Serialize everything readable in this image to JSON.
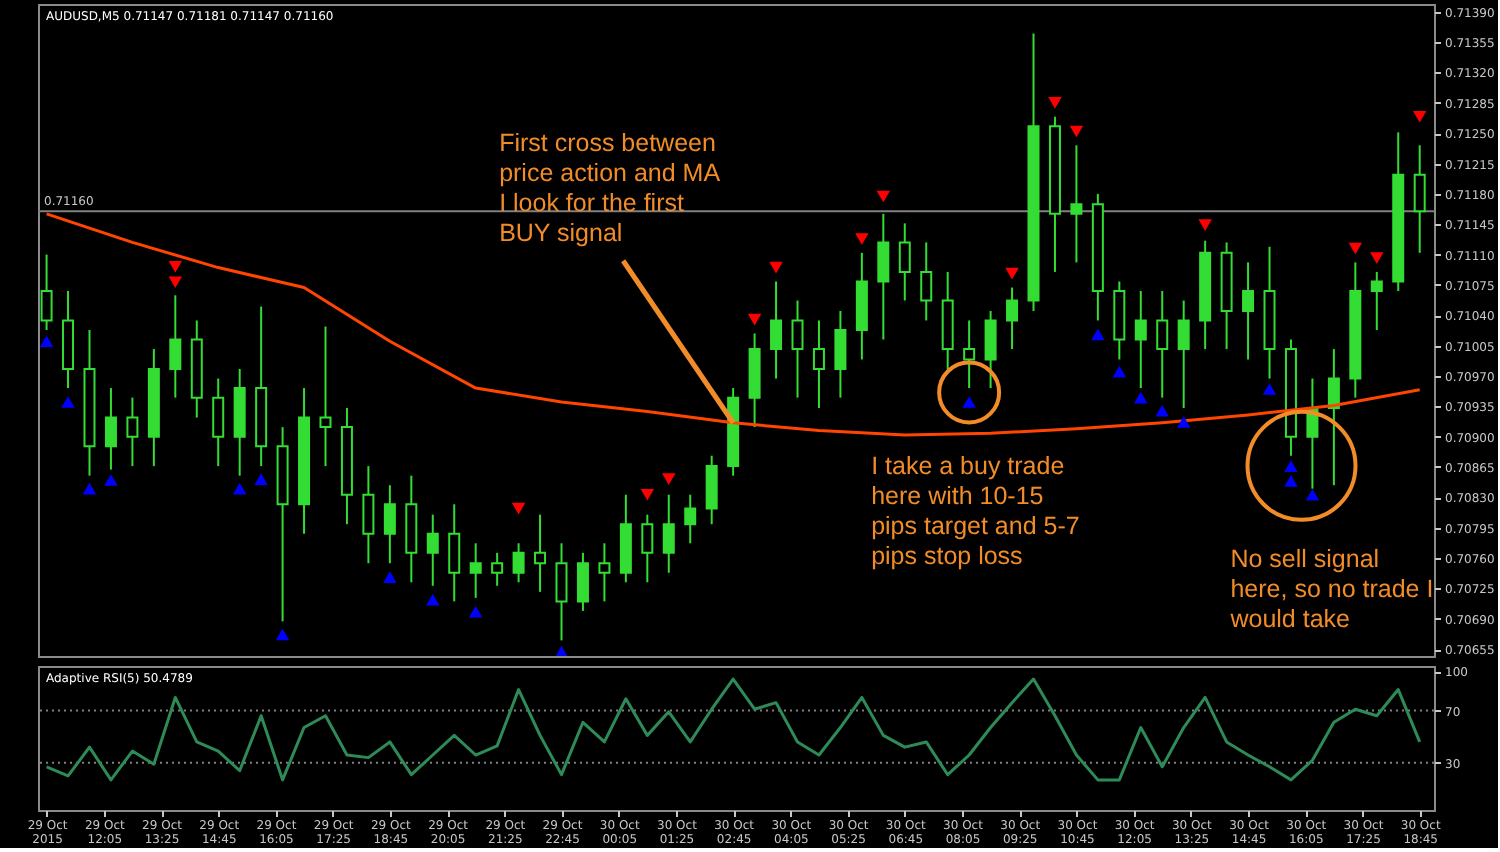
{
  "chart_data": [
    {
      "type": "candlestick",
      "title": "AUDUSD,M5 0.71147 0.71181 0.71147 0.71160",
      "tick_labels": "y",
      "x": [
        "2015-10-29T10:45",
        "2015-10-29T11:15",
        "2015-10-29T11:45",
        "2015-10-29T12:15",
        "2015-10-29T12:45",
        "2015-10-29T13:15",
        "2015-10-29T13:45",
        "2015-10-29T14:15",
        "2015-10-29T14:45",
        "2015-10-29T15:15",
        "2015-10-29T15:45",
        "2015-10-29T16:15",
        "2015-10-29T16:45",
        "2015-10-29T17:15",
        "2015-10-29T17:45",
        "2015-10-29T18:15",
        "2015-10-29T18:45",
        "2015-10-29T19:15",
        "2015-10-29T19:45",
        "2015-10-29T20:15",
        "2015-10-29T20:45",
        "2015-10-29T21:15",
        "2015-10-29T21:45",
        "2015-10-29T22:15",
        "2015-10-29T22:45",
        "2015-10-29T23:15",
        "2015-10-29T23:45",
        "2015-10-30T00:15",
        "2015-10-30T00:45",
        "2015-10-30T01:15",
        "2015-10-30T01:45",
        "2015-10-30T02:15",
        "2015-10-30T02:45",
        "2015-10-30T03:15",
        "2015-10-30T03:45",
        "2015-10-30T04:15",
        "2015-10-30T04:45",
        "2015-10-30T05:15",
        "2015-10-30T05:45",
        "2015-10-30T06:15",
        "2015-10-30T06:45",
        "2015-10-30T07:15",
        "2015-10-30T07:45",
        "2015-10-30T08:15",
        "2015-10-30T08:45",
        "2015-10-30T09:15",
        "2015-10-30T09:45",
        "2015-10-30T10:15",
        "2015-10-30T10:45",
        "2015-10-30T11:15",
        "2015-10-30T11:45",
        "2015-10-30T12:15",
        "2015-10-30T12:45",
        "2015-10-30T13:15",
        "2015-10-30T13:45",
        "2015-10-30T14:15",
        "2015-10-30T14:45",
        "2015-10-30T15:15",
        "2015-10-30T15:45",
        "2015-10-30T16:15",
        "2015-10-30T16:45",
        "2015-10-30T17:15",
        "2015-10-30T17:45",
        "2015-10-30T18:15",
        "2015-10-30T18:45"
      ],
      "series": [
        {
          "type": "line",
          "color": "#ff4500",
          "x": [
            "2015-10-29T10:45",
            "2015-10-29T12:45",
            "2015-10-29T14:45",
            "2015-10-29T16:45",
            "2015-10-29T18:45",
            "2015-10-29T20:45",
            "2015-10-29T22:45",
            "2015-10-30T00:45",
            "2015-10-30T02:45",
            "2015-10-30T04:45",
            "2015-10-30T06:45",
            "2015-10-30T08:45",
            "2015-10-30T10:45",
            "2015-10-30T12:45",
            "2015-10-30T14:45",
            "2015-10-30T16:45",
            "2015-10-30T18:45"
          ],
          "values": [
            0.71157,
            0.71124,
            0.71095,
            0.71072,
            0.7101,
            0.70956,
            0.7094,
            0.70929,
            0.70916,
            0.70907,
            0.70902,
            0.70904,
            0.70909,
            0.70916,
            0.70925,
            0.70936,
            0.70954
          ]
        },
        {
          "type": "scatter",
          "color": "#0000ff",
          "marker": "triangle",
          "x": [
            "2015-10-29T10:45",
            "2015-10-29T11:15",
            "2015-10-29T11:45",
            "2015-10-29T12:15",
            "2015-10-29T15:15",
            "2015-10-29T15:45",
            "2015-10-29T16:15",
            "2015-10-29T18:45",
            "2015-10-29T19:45",
            "2015-10-29T20:45",
            "2015-10-29T22:45",
            "2015-10-30T08:15",
            "2015-10-30T11:15",
            "2015-10-30T11:45",
            "2015-10-30T12:15",
            "2015-10-30T12:45",
            "2015-10-30T13:15",
            "2015-10-30T15:15",
            "2015-10-30T15:45",
            "2015-10-30T15:45",
            "2015-10-30T16:15"
          ],
          "values": [
            0.7101,
            0.7094,
            0.7084,
            0.7085,
            0.7084,
            0.70851,
            0.70672,
            0.70738,
            0.70712,
            0.70698,
            0.70652,
            0.7094,
            0.71018,
            0.70975,
            0.70945,
            0.7093,
            0.70917,
            0.70955,
            0.70866,
            0.70849,
            0.70833
          ]
        },
        {
          "type": "scatter",
          "color": "#ff0000",
          "marker": "triangle-down",
          "x": [
            "2015-10-29T13:45",
            "2015-10-29T13:45",
            "2015-10-29T21:45",
            "2015-10-30T00:45",
            "2015-10-30T01:15",
            "2015-10-30T03:15",
            "2015-10-30T03:45",
            "2015-10-30T05:45",
            "2015-10-30T06:15",
            "2015-10-30T09:15",
            "2015-10-30T10:15",
            "2015-10-30T10:45",
            "2015-10-30T13:45",
            "2015-10-30T17:15",
            "2015-10-30T17:45",
            "2015-10-30T18:45"
          ],
          "values": [
            0.71078,
            0.71096,
            0.70817,
            0.70833,
            0.70851,
            0.71035,
            0.71095,
            0.71128,
            0.71177,
            0.71088,
            0.71285,
            0.71252,
            0.71144,
            0.71117,
            0.71106,
            0.71269
          ]
        },
        {
          "type": "candlestick",
          "color": "#33dd33",
          "ohlc": [
            [
              0.71068,
              0.7111,
              0.71023,
              0.71034
            ],
            [
              0.71034,
              0.71068,
              0.70956,
              0.70978
            ],
            [
              0.70978,
              0.71023,
              0.70855,
              0.70889
            ],
            [
              0.70889,
              0.70956,
              0.70862,
              0.70922
            ],
            [
              0.70922,
              0.70945,
              0.70866,
              0.709
            ],
            [
              0.709,
              0.71001,
              0.70866,
              0.70978
            ],
            [
              0.70978,
              0.71063,
              0.70945,
              0.71012
            ],
            [
              0.71012,
              0.71034,
              0.70922,
              0.70945
            ],
            [
              0.70945,
              0.70967,
              0.70866,
              0.709
            ],
            [
              0.709,
              0.70978,
              0.70855,
              0.70956
            ],
            [
              0.70956,
              0.7105,
              0.70866,
              0.70889
            ],
            [
              0.70889,
              0.70911,
              0.70687,
              0.70822
            ],
            [
              0.70822,
              0.70956,
              0.70788,
              0.70922
            ],
            [
              0.70922,
              0.71027,
              0.70866,
              0.70911
            ],
            [
              0.70911,
              0.70933,
              0.70799,
              0.70833
            ],
            [
              0.70833,
              0.70866,
              0.70754,
              0.70788
            ],
            [
              0.70788,
              0.70844,
              0.70754,
              0.70822
            ],
            [
              0.70822,
              0.70855,
              0.70732,
              0.70766
            ],
            [
              0.70766,
              0.7081,
              0.70728,
              0.70788
            ],
            [
              0.70788,
              0.70822,
              0.7071,
              0.70743
            ],
            [
              0.70743,
              0.70777,
              0.70714,
              0.70754
            ],
            [
              0.70754,
              0.70766,
              0.70728,
              0.70743
            ],
            [
              0.70743,
              0.70777,
              0.70732,
              0.70766
            ],
            [
              0.70766,
              0.7081,
              0.70721,
              0.70754
            ],
            [
              0.70754,
              0.70777,
              0.70665,
              0.7071
            ],
            [
              0.7071,
              0.70766,
              0.70699,
              0.70754
            ],
            [
              0.70754,
              0.70777,
              0.7071,
              0.70743
            ],
            [
              0.70743,
              0.70833,
              0.70732,
              0.70799
            ],
            [
              0.70799,
              0.7081,
              0.70732,
              0.70766
            ],
            [
              0.70766,
              0.70833,
              0.70743,
              0.70799
            ],
            [
              0.70799,
              0.70833,
              0.70777,
              0.70817
            ],
            [
              0.70817,
              0.70878,
              0.70799,
              0.70866
            ],
            [
              0.70866,
              0.70956,
              0.70855,
              0.70945
            ],
            [
              0.70945,
              0.71019,
              0.70911,
              0.71001
            ],
            [
              0.71001,
              0.71079,
              0.70967,
              0.71034
            ],
            [
              0.71034,
              0.71057,
              0.70945,
              0.71001
            ],
            [
              0.71001,
              0.71034,
              0.70933,
              0.70978
            ],
            [
              0.70978,
              0.71045,
              0.70945,
              0.71023
            ],
            [
              0.71023,
              0.71112,
              0.70989,
              0.71079
            ],
            [
              0.71079,
              0.71157,
              0.71012,
              0.71124
            ],
            [
              0.71124,
              0.71146,
              0.71057,
              0.7109
            ],
            [
              0.7109,
              0.71124,
              0.71034,
              0.71057
            ],
            [
              0.71057,
              0.7109,
              0.70978,
              0.71001
            ],
            [
              0.71001,
              0.71034,
              0.70956,
              0.70989
            ],
            [
              0.70989,
              0.71045,
              0.70956,
              0.71034
            ],
            [
              0.71034,
              0.71072,
              0.71001,
              0.71057
            ],
            [
              0.71057,
              0.71365,
              0.71045,
              0.71258
            ],
            [
              0.71258,
              0.71269,
              0.7109,
              0.71157
            ],
            [
              0.71157,
              0.71236,
              0.71101,
              0.71168
            ],
            [
              0.71168,
              0.7118,
              0.71034,
              0.71068
            ],
            [
              0.71068,
              0.71079,
              0.70989,
              0.71012
            ],
            [
              0.71012,
              0.71068,
              0.70956,
              0.71034
            ],
            [
              0.71034,
              0.71068,
              0.70945,
              0.71001
            ],
            [
              0.71001,
              0.71057,
              0.70933,
              0.71034
            ],
            [
              0.71034,
              0.71126,
              0.71001,
              0.71112
            ],
            [
              0.71112,
              0.71124,
              0.71001,
              0.71045
            ],
            [
              0.71045,
              0.71101,
              0.70989,
              0.71068
            ],
            [
              0.71068,
              0.71119,
              0.70967,
              0.71001
            ],
            [
              0.71001,
              0.71012,
              0.70878,
              0.709
            ],
            [
              0.709,
              0.70967,
              0.7084,
              0.70933
            ],
            [
              0.70933,
              0.71001,
              0.70844,
              0.70967
            ],
            [
              0.70967,
              0.71101,
              0.70945,
              0.71068
            ],
            [
              0.71068,
              0.7109,
              0.71023,
              0.71079
            ],
            [
              0.71079,
              0.71251,
              0.71068,
              0.71202
            ],
            [
              0.71202,
              0.71236,
              0.71112,
              0.7116
            ]
          ]
        }
      ],
      "xlim": [
        "2015-10-29T10:33",
        "2015-10-30T19:05"
      ],
      "ylim": [
        0.70647,
        0.71399
      ],
      "yticks": [
        {
          "value": 0.7139,
          "label": "0.71390"
        },
        0.71355,
        {
          "value": 0.7132,
          "label": "0.71320"
        },
        0.71285,
        {
          "value": 0.7125,
          "label": "0.71250"
        },
        0.71215,
        {
          "value": 0.7118,
          "label": "0.71180"
        },
        0.71145,
        {
          "value": 0.7111,
          "label": "0.71110"
        },
        0.71075,
        {
          "value": 0.7104,
          "label": "0.71040"
        },
        0.71005,
        {
          "value": 0.7097,
          "label": "0.70970"
        },
        0.70935,
        {
          "value": 0.709,
          "label": "0.70900"
        },
        0.70865,
        {
          "value": 0.7083,
          "label": "0.70830"
        },
        0.70795,
        {
          "value": 0.7076,
          "label": "0.70760"
        },
        0.70725,
        {
          "value": 0.7069,
          "label": "0.70690"
        },
        0.70655
      ],
      "ref_lines": [
        {
          "axis": "y",
          "value": 0.7116,
          "label": "0.71160",
          "color": "#808080"
        }
      ],
      "annotations": [
        {
          "text": "First cross between\nprice action and MA\nI look for the first\nBUY signal",
          "x": "2015-10-30T02:45",
          "y": 0.70916
        },
        {
          "text": "I take a buy trade\nhere with 10-15\npips target and 5-7\npips stop loss",
          "x": "2015-10-30T08:15",
          "y": 0.70951
        },
        "No sell signal\nhere, so no trade I\nwould take"
      ]
    },
    {
      "type": "line",
      "title": "Adaptive RSI(5) 50.4789",
      "x": [
        "2015-10-29T10:45",
        "2015-10-29T11:15",
        "2015-10-29T11:45",
        "2015-10-29T12:15",
        "2015-10-29T12:45",
        "2015-10-29T13:15",
        "2015-10-29T13:45",
        "2015-10-29T14:15",
        "2015-10-29T14:45",
        "2015-10-29T15:15",
        "2015-10-29T15:45",
        "2015-10-29T16:15",
        "2015-10-29T16:45",
        "2015-10-29T17:15",
        "2015-10-29T17:45",
        "2015-10-29T18:15",
        "2015-10-29T18:45",
        "2015-10-29T19:15",
        "2015-10-29T19:45",
        "2015-10-29T20:15",
        "2015-10-29T20:45",
        "2015-10-29T21:15",
        "2015-10-29T21:45",
        "2015-10-29T22:15",
        "2015-10-29T22:45",
        "2015-10-29T23:15",
        "2015-10-29T23:45",
        "2015-10-30T00:15",
        "2015-10-30T00:45",
        "2015-10-30T01:15",
        "2015-10-30T01:45",
        "2015-10-30T02:15",
        "2015-10-30T02:45",
        "2015-10-30T03:15",
        "2015-10-30T03:45",
        "2015-10-30T04:15",
        "2015-10-30T04:45",
        "2015-10-30T05:15",
        "2015-10-30T05:45",
        "2015-10-30T06:15",
        "2015-10-30T06:45",
        "2015-10-30T07:15",
        "2015-10-30T07:45",
        "2015-10-30T08:15",
        "2015-10-30T08:45",
        "2015-10-30T09:15",
        "2015-10-30T09:45",
        "2015-10-30T10:15",
        "2015-10-30T10:45",
        "2015-10-30T11:15",
        "2015-10-30T11:45",
        "2015-10-30T12:15",
        "2015-10-30T12:45",
        "2015-10-30T13:15",
        "2015-10-30T13:45",
        "2015-10-30T14:15",
        "2015-10-30T14:45",
        "2015-10-30T15:15",
        "2015-10-30T15:45",
        "2015-10-30T16:15",
        "2015-10-30T16:45",
        "2015-10-30T17:15",
        "2015-10-30T17:45",
        "2015-10-30T18:15",
        "2015-10-30T18:45"
      ],
      "series": [
        {
          "color": "#2e8b57",
          "values": [
            27,
            20,
            42,
            17,
            39,
            29,
            80,
            46,
            39,
            24,
            66,
            17,
            57,
            66,
            36,
            34,
            46,
            21,
            36,
            51,
            36,
            43,
            86,
            51,
            21,
            61,
            46,
            79,
            51,
            69,
            46,
            71,
            94,
            71,
            76,
            46,
            36,
            57,
            80,
            51,
            42,
            46,
            21,
            36,
            57,
            76,
            94,
            66,
            36,
            17,
            17,
            57,
            27,
            57,
            80,
            46,
            36,
            27,
            17,
            32,
            61,
            71,
            66,
            86,
            46
          ]
        }
      ],
      "xlim": [
        "2015-10-29T10:33",
        "2015-10-30T19:05"
      ],
      "xticks": [
        {
          "value": "2015-10-29T10:45",
          "label": "29 Oct 2015"
        },
        {
          "value": "2015-10-29T12:05",
          "label": "29 Oct 12:05"
        },
        {
          "value": "2015-10-29T13:25",
          "label": "29 Oct 13:25"
        },
        {
          "value": "2015-10-29T14:45",
          "label": "29 Oct 14:45"
        },
        {
          "value": "2015-10-29T16:05",
          "label": "29 Oct 16:05"
        },
        {
          "value": "2015-10-29T17:25",
          "label": "29 Oct 17:25"
        },
        {
          "value": "2015-10-29T18:45",
          "label": "29 Oct 18:45"
        },
        {
          "value": "2015-10-29T20:05",
          "label": "29 Oct 20:05"
        },
        {
          "value": "2015-10-29T21:25",
          "label": "29 Oct 21:25"
        },
        {
          "value": "2015-10-29T22:45",
          "label": "29 Oct 22:45"
        },
        {
          "value": "2015-10-30T00:05",
          "label": "30 Oct 00:05"
        },
        {
          "value": "2015-10-30T01:25",
          "label": "30 Oct 01:25"
        },
        {
          "value": "2015-10-30T02:45",
          "label": "30 Oct 02:45"
        },
        {
          "value": "2015-10-30T04:05",
          "label": "30 Oct 04:05"
        },
        {
          "value": "2015-10-30T05:25",
          "label": "30 Oct 05:25"
        },
        {
          "value": "2015-10-30T06:45",
          "label": "30 Oct 06:45"
        },
        {
          "value": "2015-10-30T08:05",
          "label": "30 Oct 08:05"
        },
        {
          "value": "2015-10-30T09:25",
          "label": "30 Oct 09:25"
        },
        {
          "value": "2015-10-30T10:45",
          "label": "30 Oct 10:45"
        },
        {
          "value": "2015-10-30T12:05",
          "label": "30 Oct 12:05"
        },
        {
          "value": "2015-10-30T13:25",
          "label": "30 Oct 13:25"
        },
        {
          "value": "2015-10-30T14:45",
          "label": "30 Oct 14:45"
        },
        {
          "value": "2015-10-30T16:05",
          "label": "30 Oct 16:05"
        },
        {
          "value": "2015-10-30T17:25",
          "label": "30 Oct 17:25"
        },
        {
          "value": "2015-10-30T18:45",
          "label": "30 Oct 18:45"
        }
      ],
      "ylim": [
        -6,
        104
      ],
      "yticks": [
        100,
        70,
        30
      ],
      "ref_lines": [
        {
          "axis": "y",
          "value": 70,
          "color": "#808080",
          "line_style": "dotted"
        },
        {
          "axis": "y",
          "value": 30,
          "color": "#808080",
          "line_style": "dotted"
        }
      ]
    }
  ]
}
